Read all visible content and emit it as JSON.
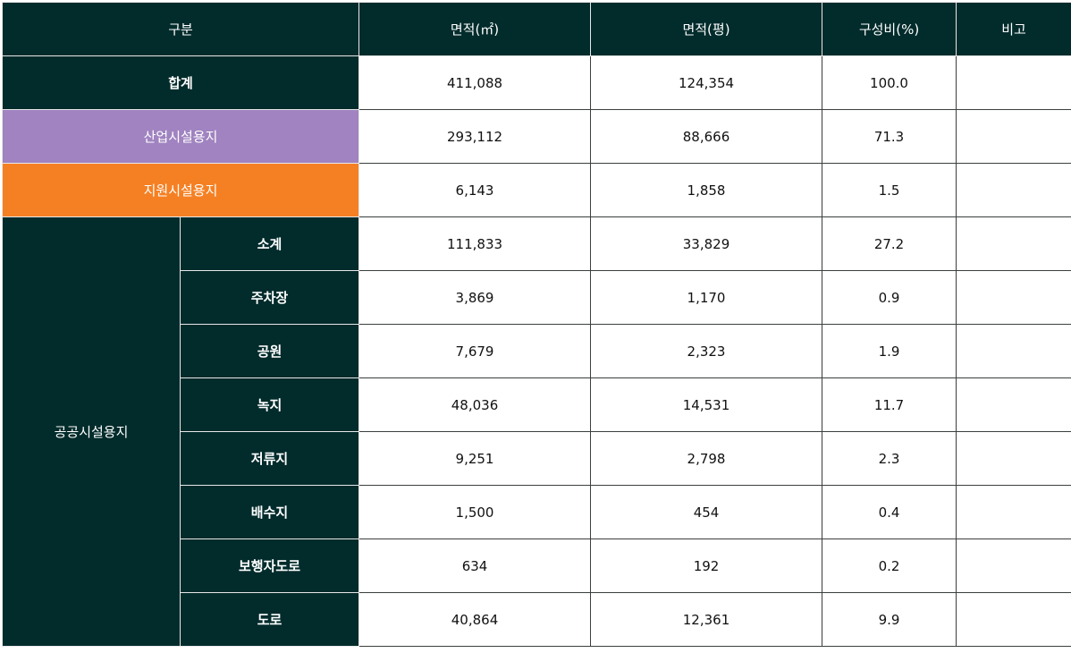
{
  "header": {
    "category": "구분",
    "area_m2": "면적(㎡)",
    "area_pyeong": "면적(평)",
    "ratio": "구성비(%)",
    "note": "비고"
  },
  "rows": {
    "total": {
      "label": "합계",
      "area_m2": "411,088",
      "area_pyeong": "124,354",
      "ratio": "100.0",
      "note": ""
    },
    "industrial": {
      "label": "산업시설용지",
      "area_m2": "293,112",
      "area_pyeong": "88,666",
      "ratio": "71.3",
      "note": ""
    },
    "support": {
      "label": "지원시설용지",
      "area_m2": "6,143",
      "area_pyeong": "1,858",
      "ratio": "1.5",
      "note": ""
    }
  },
  "public": {
    "label": "공공시설용지",
    "items": [
      {
        "label": "소계",
        "area_m2": "111,833",
        "area_pyeong": "33,829",
        "ratio": "27.2",
        "note": ""
      },
      {
        "label": "주차장",
        "area_m2": "3,869",
        "area_pyeong": "1,170",
        "ratio": "0.9",
        "note": ""
      },
      {
        "label": "공원",
        "area_m2": "7,679",
        "area_pyeong": "2,323",
        "ratio": "1.9",
        "note": ""
      },
      {
        "label": "녹지",
        "area_m2": "48,036",
        "area_pyeong": "14,531",
        "ratio": "11.7",
        "note": ""
      },
      {
        "label": "저류지",
        "area_m2": "9,251",
        "area_pyeong": "2,798",
        "ratio": "2.3",
        "note": ""
      },
      {
        "label": "배수지",
        "area_m2": "1,500",
        "area_pyeong": "454",
        "ratio": "0.4",
        "note": ""
      },
      {
        "label": "보행자도로",
        "area_m2": "634",
        "area_pyeong": "192",
        "ratio": "0.2",
        "note": ""
      },
      {
        "label": "도로",
        "area_m2": "40,864",
        "area_pyeong": "12,361",
        "ratio": "9.9",
        "note": ""
      }
    ]
  },
  "colors": {
    "dark": "#022b2b",
    "industrial": "#a083c0",
    "support": "#f58023"
  }
}
